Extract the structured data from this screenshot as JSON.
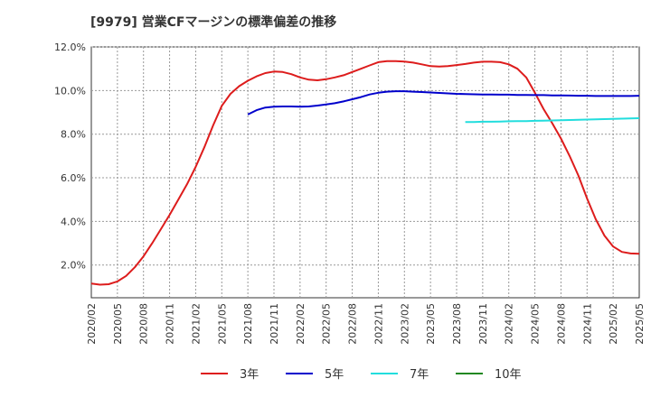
{
  "chart_data": {
    "type": "line",
    "title": "[9979]  営業CFマージンの標準偏差の推移",
    "xlabel": "",
    "ylabel": "",
    "ylim": [
      0.5,
      12.0
    ],
    "y_ticks": [
      2.0,
      4.0,
      6.0,
      8.0,
      10.0,
      12.0
    ],
    "y_tick_labels": [
      "2.0%",
      "4.0%",
      "6.0%",
      "8.0%",
      "10.0%",
      "12.0%"
    ],
    "x_ticks": [
      "2020/02",
      "2020/05",
      "2020/08",
      "2020/11",
      "2021/02",
      "2021/05",
      "2021/08",
      "2021/11",
      "2022/02",
      "2022/05",
      "2022/08",
      "2022/11",
      "2023/02",
      "2023/05",
      "2023/08",
      "2023/11",
      "2024/02",
      "2024/05",
      "2024/08",
      "2024/11",
      "2025/02",
      "2025/05"
    ],
    "x_start": "2020/02",
    "legend_position": "bottom",
    "grid": true,
    "series": [
      {
        "name": "3年",
        "color": "#dd1c1c",
        "start_index": 0,
        "values": [
          1.15,
          1.1,
          1.12,
          1.25,
          1.5,
          1.9,
          2.4,
          3.0,
          3.65,
          4.3,
          5.0,
          5.7,
          6.5,
          7.4,
          8.4,
          9.3,
          9.85,
          10.2,
          10.45,
          10.65,
          10.8,
          10.87,
          10.85,
          10.75,
          10.6,
          10.5,
          10.47,
          10.52,
          10.6,
          10.7,
          10.85,
          11.0,
          11.15,
          11.3,
          11.35,
          11.35,
          11.33,
          11.28,
          11.2,
          11.12,
          11.1,
          11.12,
          11.17,
          11.22,
          11.28,
          11.32,
          11.32,
          11.3,
          11.2,
          11.0,
          10.6,
          9.9,
          9.15,
          8.5,
          7.8,
          7.0,
          6.1,
          5.05,
          4.1,
          3.35,
          2.85,
          2.6,
          2.53,
          2.52
        ]
      },
      {
        "name": "5年",
        "color": "#0000cc",
        "start_index": 18,
        "values": [
          8.9,
          9.1,
          9.22,
          9.26,
          9.27,
          9.27,
          9.26,
          9.27,
          9.31,
          9.36,
          9.42,
          9.5,
          9.6,
          9.7,
          9.82,
          9.9,
          9.95,
          9.97,
          9.97,
          9.95,
          9.93,
          9.91,
          9.89,
          9.87,
          9.85,
          9.84,
          9.83,
          9.82,
          9.82,
          9.81,
          9.81,
          9.8,
          9.8,
          9.79,
          9.79,
          9.78,
          9.78,
          9.77,
          9.76,
          9.76,
          9.75,
          9.75,
          9.75,
          9.75,
          9.75,
          9.76
        ]
      },
      {
        "name": "7年",
        "color": "#22dddd",
        "start_index": 43,
        "values": [
          8.56,
          8.56,
          8.57,
          8.57,
          8.58,
          8.59,
          8.6,
          8.6,
          8.61,
          8.62,
          8.63,
          8.64,
          8.65,
          8.66,
          8.67,
          8.68,
          8.69,
          8.7,
          8.71,
          8.72,
          8.73
        ]
      },
      {
        "name": "10年",
        "color": "#228822",
        "start_index": 0,
        "values": []
      }
    ]
  }
}
